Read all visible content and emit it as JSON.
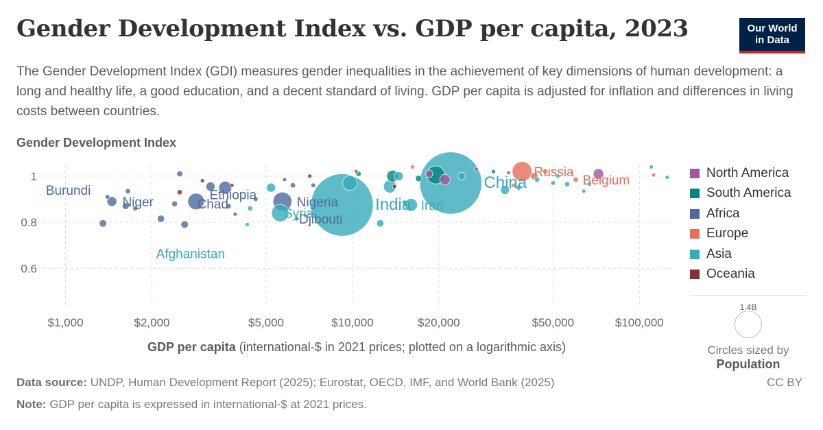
{
  "header": {
    "title": "Gender Development Index vs. GDP per capita, 2023",
    "subtitle": "The Gender Development Index (GDI) measures gender inequalities in the achievement of key dimensions of human development: a long and healthy life, a good education, and a decent standard of living. GDP per capita is adjusted for inflation and differences in living costs between countries.",
    "logo_line1": "Our World",
    "logo_line2": "in Data"
  },
  "chart_data": {
    "type": "scatter",
    "title": "Gender Development Index vs. GDP per capita, 2023",
    "ylabel": "Gender Development Index",
    "xlabel_bold": "GDP per capita",
    "xlabel_rest": "(international-$ in 2021 prices; plotted on a logarithmic axis)",
    "xscale": "log",
    "xlim": [
      800,
      130000
    ],
    "ylim": [
      0.455,
      1.05
    ],
    "grid": true,
    "x_ticks": [
      {
        "value": 1000,
        "label": "$1,000"
      },
      {
        "value": 2000,
        "label": "$2,000"
      },
      {
        "value": 5000,
        "label": "$5,000"
      },
      {
        "value": 10000,
        "label": "$10,000"
      },
      {
        "value": 20000,
        "label": "$20,000"
      },
      {
        "value": 50000,
        "label": "$50,000"
      },
      {
        "value": 100000,
        "label": "$100,000"
      }
    ],
    "y_ticks": [
      {
        "value": 0.6,
        "label": "0.6"
      },
      {
        "value": 0.8,
        "label": "0.8"
      },
      {
        "value": 1,
        "label": "1"
      }
    ],
    "legend_position": "right",
    "regions": [
      {
        "name": "North America",
        "color": "#a2559c"
      },
      {
        "name": "South America",
        "color": "#00847e"
      },
      {
        "name": "Africa",
        "color": "#4c6a9c"
      },
      {
        "name": "Europe",
        "color": "#e56e5a"
      },
      {
        "name": "Asia",
        "color": "#38aaba"
      },
      {
        "name": "Oceania",
        "color": "#883039"
      }
    ],
    "labeled_points": [
      {
        "label": "Burundi",
        "region": "Africa",
        "x": 820,
        "y": 0.94,
        "population_m": 13
      },
      {
        "label": "Niger",
        "region": "Africa",
        "x": 1500,
        "y": 0.89,
        "population_m": 27
      },
      {
        "label": "Chad",
        "region": "Africa",
        "x": 2750,
        "y": 0.88,
        "population_m": 19
      },
      {
        "label": "Ethiopia",
        "region": "Africa",
        "x": 2900,
        "y": 0.92,
        "population_m": 126
      },
      {
        "label": "Afghanistan",
        "region": "Asia",
        "x": 1950,
        "y": 0.665,
        "population_m": 42
      },
      {
        "label": "Syria",
        "region": "Asia",
        "x": 5500,
        "y": 0.84,
        "population_m": 23
      },
      {
        "label": "Nigeria",
        "region": "Africa",
        "x": 5700,
        "y": 0.89,
        "population_m": 224
      },
      {
        "label": "Djibouti",
        "region": "Africa",
        "x": 6300,
        "y": 0.815,
        "population_m": 1
      },
      {
        "label": "India",
        "region": "Asia",
        "x": 9200,
        "y": 0.875,
        "population_m": 1430
      },
      {
        "label": "Iran",
        "region": "Asia",
        "x": 16000,
        "y": 0.875,
        "population_m": 90
      },
      {
        "label": "China",
        "region": "Asia",
        "x": 22000,
        "y": 0.97,
        "population_m": 1420
      },
      {
        "label": "Russia",
        "region": "Europe",
        "x": 39000,
        "y": 1.02,
        "population_m": 144
      },
      {
        "label": "Belgium",
        "region": "Europe",
        "x": 61000,
        "y": 0.985,
        "population_m": 12
      }
    ],
    "points": [
      {
        "region": "Africa",
        "x": 1350,
        "y": 0.795,
        "population_m": 20
      },
      {
        "region": "Africa",
        "x": 1400,
        "y": 0.91,
        "population_m": 8
      },
      {
        "region": "Africa",
        "x": 1450,
        "y": 0.89,
        "population_m": 35
      },
      {
        "region": "Africa",
        "x": 1650,
        "y": 0.935,
        "population_m": 10
      },
      {
        "region": "Africa",
        "x": 1620,
        "y": 0.87,
        "population_m": 17
      },
      {
        "region": "Africa",
        "x": 1750,
        "y": 0.86,
        "population_m": 9
      },
      {
        "region": "Africa",
        "x": 2150,
        "y": 0.815,
        "population_m": 19
      },
      {
        "region": "Africa",
        "x": 2400,
        "y": 0.88,
        "population_m": 12
      },
      {
        "region": "Africa",
        "x": 2500,
        "y": 1.01,
        "population_m": 13
      },
      {
        "region": "Oceania",
        "x": 2500,
        "y": 0.93,
        "population_m": 10
      },
      {
        "region": "Africa",
        "x": 2600,
        "y": 0.79,
        "population_m": 20
      },
      {
        "region": "Africa",
        "x": 2850,
        "y": 0.89,
        "population_m": 100
      },
      {
        "region": "Oceania",
        "x": 3000,
        "y": 0.98,
        "population_m": 1
      },
      {
        "region": "Africa",
        "x": 3200,
        "y": 0.955,
        "population_m": 30
      },
      {
        "region": "Africa",
        "x": 3600,
        "y": 0.95,
        "population_m": 60
      },
      {
        "region": "Oceania",
        "x": 3800,
        "y": 0.96,
        "population_m": 5
      },
      {
        "region": "Africa",
        "x": 3700,
        "y": 0.87,
        "population_m": 10
      },
      {
        "region": "Africa",
        "x": 3900,
        "y": 0.835,
        "population_m": 5
      },
      {
        "region": "Asia",
        "x": 4300,
        "y": 0.79,
        "population_m": 3
      },
      {
        "region": "Asia",
        "x": 4400,
        "y": 0.86,
        "population_m": 10
      },
      {
        "region": "Africa",
        "x": 4600,
        "y": 0.9,
        "population_m": 8
      },
      {
        "region": "Asia",
        "x": 5200,
        "y": 0.95,
        "population_m": 30
      },
      {
        "region": "Asia",
        "x": 5600,
        "y": 0.84,
        "population_m": 110
      },
      {
        "region": "Africa",
        "x": 5700,
        "y": 0.89,
        "population_m": 130
      },
      {
        "region": "Africa",
        "x": 5800,
        "y": 0.985,
        "population_m": 5
      },
      {
        "region": "Africa",
        "x": 6200,
        "y": 0.96,
        "population_m": 10
      },
      {
        "region": "Africa",
        "x": 6400,
        "y": 0.815,
        "population_m": 3
      },
      {
        "region": "Oceania",
        "x": 7100,
        "y": 1.0,
        "population_m": 1
      },
      {
        "region": "Africa",
        "x": 7300,
        "y": 0.96,
        "population_m": 8
      },
      {
        "region": "Asia",
        "x": 9200,
        "y": 0.875,
        "population_m": 1430
      },
      {
        "region": "Asia",
        "x": 9800,
        "y": 0.97,
        "population_m": 80
      },
      {
        "region": "South America",
        "x": 10500,
        "y": 1.01,
        "population_m": 10
      },
      {
        "region": "North America",
        "x": 10300,
        "y": 1.02,
        "population_m": 5
      },
      {
        "region": "Asia",
        "x": 12500,
        "y": 0.795,
        "population_m": 20
      },
      {
        "region": "Asia",
        "x": 13500,
        "y": 0.955,
        "population_m": 60
      },
      {
        "region": "South America",
        "x": 13800,
        "y": 1.0,
        "population_m": 50
      },
      {
        "region": "Oceania",
        "x": 14000,
        "y": 0.955,
        "population_m": 5
      },
      {
        "region": "Asia",
        "x": 14500,
        "y": 1.0,
        "population_m": 30
      },
      {
        "region": "Asia",
        "x": 15200,
        "y": 0.885,
        "population_m": 10
      },
      {
        "region": "Asia",
        "x": 16000,
        "y": 0.875,
        "population_m": 60
      },
      {
        "region": "Europe",
        "x": 16200,
        "y": 1.04,
        "population_m": 5
      },
      {
        "region": "South America",
        "x": 17000,
        "y": 0.99,
        "population_m": 15
      },
      {
        "region": "North America",
        "x": 18500,
        "y": 1.01,
        "population_m": 20
      },
      {
        "region": "South America",
        "x": 19500,
        "y": 1.005,
        "population_m": 120
      },
      {
        "region": "North America",
        "x": 21000,
        "y": 0.985,
        "population_m": 40
      },
      {
        "region": "Asia",
        "x": 22000,
        "y": 0.97,
        "population_m": 1420
      },
      {
        "region": "Asia",
        "x": 24000,
        "y": 1.0,
        "population_m": 20
      },
      {
        "region": "North America",
        "x": 27000,
        "y": 1.03,
        "population_m": 3
      },
      {
        "region": "South America",
        "x": 31000,
        "y": 1.02,
        "population_m": 3
      },
      {
        "region": "Asia",
        "x": 34000,
        "y": 0.94,
        "population_m": 30
      },
      {
        "region": "North America",
        "x": 35000,
        "y": 1.015,
        "population_m": 5
      },
      {
        "region": "Europe",
        "x": 36500,
        "y": 0.96,
        "population_m": 8
      },
      {
        "region": "Asia",
        "x": 38000,
        "y": 0.95,
        "population_m": 10
      },
      {
        "region": "Europe",
        "x": 39000,
        "y": 1.02,
        "population_m": 144
      },
      {
        "region": "Europe",
        "x": 43000,
        "y": 1.0,
        "population_m": 20
      },
      {
        "region": "Asia",
        "x": 44000,
        "y": 0.985,
        "population_m": 10
      },
      {
        "region": "Europe",
        "x": 47000,
        "y": 1.02,
        "population_m": 10
      },
      {
        "region": "Asia",
        "x": 50000,
        "y": 0.97,
        "population_m": 8
      },
      {
        "region": "Asia",
        "x": 52000,
        "y": 1.0,
        "population_m": 5
      },
      {
        "region": "Asia",
        "x": 56000,
        "y": 0.965,
        "population_m": 10
      },
      {
        "region": "Europe",
        "x": 60000,
        "y": 0.985,
        "population_m": 10
      },
      {
        "region": "Asia",
        "x": 64000,
        "y": 0.935,
        "population_m": 5
      },
      {
        "region": "Asia",
        "x": 67000,
        "y": 0.965,
        "population_m": 3
      },
      {
        "region": "North America",
        "x": 72000,
        "y": 1.01,
        "population_m": 40
      },
      {
        "region": "Asia",
        "x": 110000,
        "y": 1.04,
        "population_m": 5
      },
      {
        "region": "Europe",
        "x": 112000,
        "y": 1.005,
        "population_m": 5
      },
      {
        "region": "Asia",
        "x": 125000,
        "y": 0.995,
        "population_m": 3
      }
    ]
  },
  "size_legend": {
    "value_label": "1.4B",
    "note_line1": "Circles sized by",
    "note_line2": "Population"
  },
  "footer": {
    "source_label": "Data source:",
    "source_text": "UNDP, Human Development Report (2025); Eurostat, OECD, IMF, and World Bank (2025)",
    "note_label": "Note:",
    "note_text": "GDP per capita is expressed in international-$ at 2021 prices.",
    "license": "CC BY"
  }
}
